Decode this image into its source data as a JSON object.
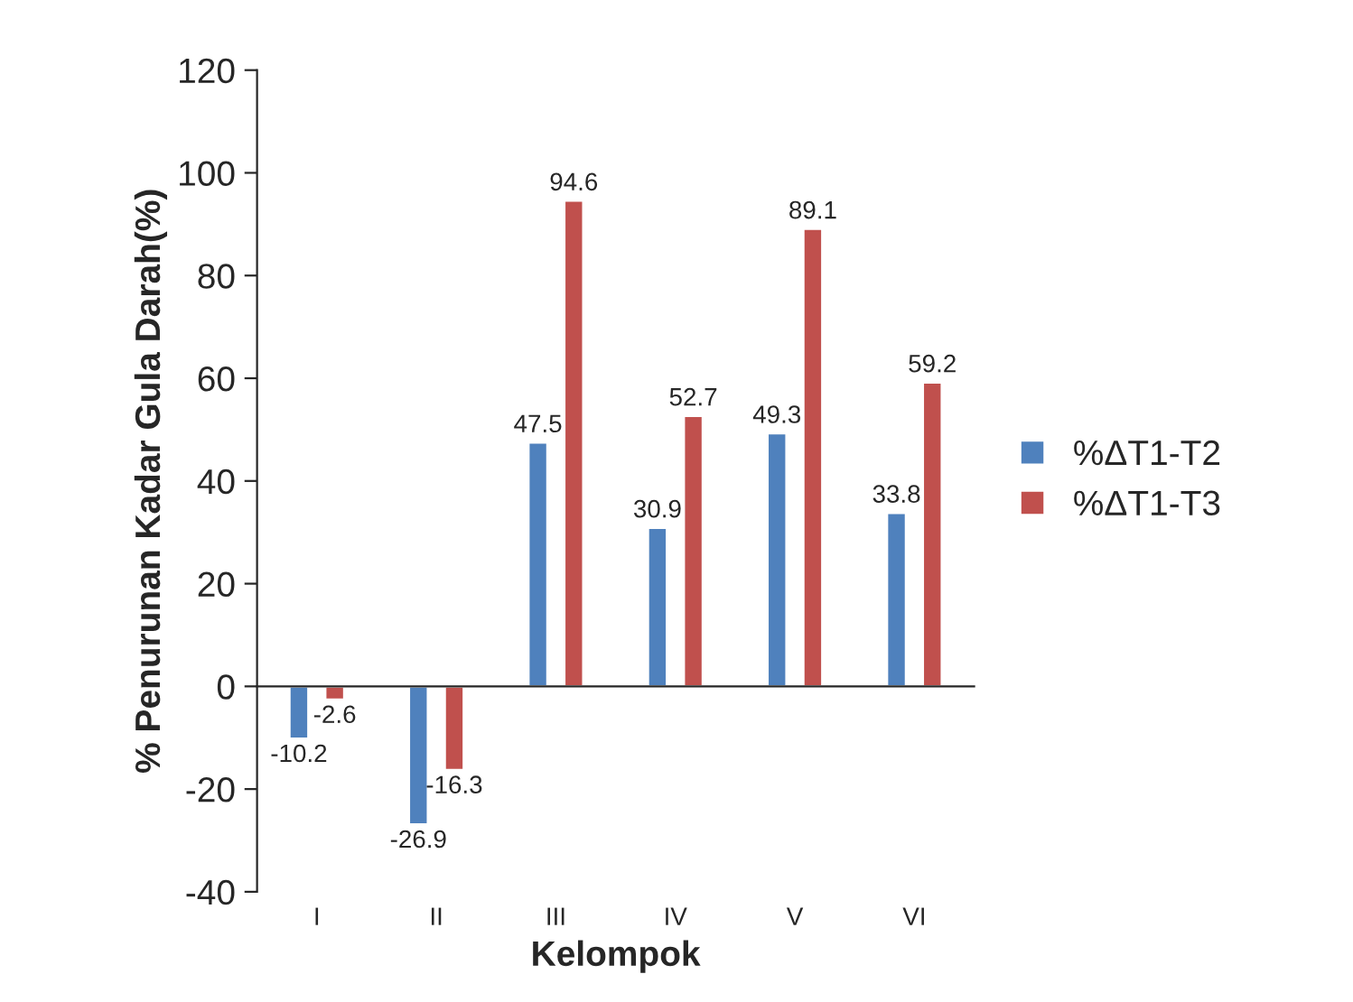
{
  "chart_data": {
    "type": "bar",
    "xlabel": "Kelompok",
    "ylabel": "% Penurunan Kadar Gula Darah(%)",
    "categories": [
      "I",
      "II",
      "III",
      "IV",
      "V",
      "VI"
    ],
    "series": [
      {
        "name": "%ΔT1-T2",
        "color": "#4f81bd",
        "values": [
          -10.2,
          -26.9,
          47.5,
          30.9,
          49.3,
          33.8
        ]
      },
      {
        "name": "%ΔT1-T3",
        "color": "#c0504d",
        "values": [
          -2.6,
          -16.3,
          94.6,
          52.7,
          89.1,
          59.2
        ]
      }
    ],
    "ylim": [
      -40,
      120
    ],
    "yticks": [
      -40,
      -20,
      0,
      20,
      40,
      60,
      80,
      100,
      120
    ],
    "data_labels": true,
    "legend": "right"
  }
}
